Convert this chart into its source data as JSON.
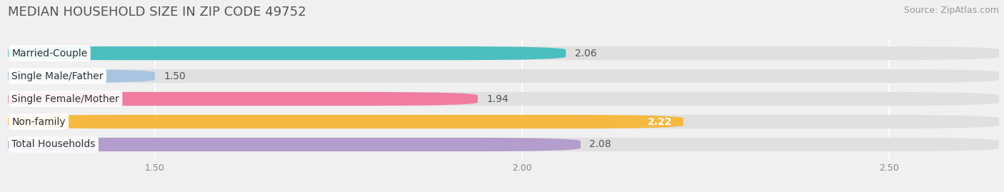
{
  "title": "MEDIAN HOUSEHOLD SIZE IN ZIP CODE 49752",
  "source": "Source: ZipAtlas.com",
  "categories": [
    "Married-Couple",
    "Single Male/Father",
    "Single Female/Mother",
    "Non-family",
    "Total Households"
  ],
  "values": [
    2.06,
    1.5,
    1.94,
    2.22,
    2.08
  ],
  "bar_colors": [
    "#4bbfbf",
    "#a8c4e0",
    "#f07ca0",
    "#f5b942",
    "#b39dcc"
  ],
  "value_inside": [
    false,
    false,
    false,
    true,
    false
  ],
  "xlim": [
    1.3,
    2.65
  ],
  "xticks": [
    1.5,
    2.0,
    2.5
  ],
  "xtick_labels": [
    "1.50",
    "2.00",
    "2.50"
  ],
  "title_fontsize": 13,
  "source_fontsize": 9,
  "bar_label_fontsize": 10,
  "category_fontsize": 10,
  "background_color": "#f0f0f0",
  "bar_bg_color": "#e0e0e0"
}
